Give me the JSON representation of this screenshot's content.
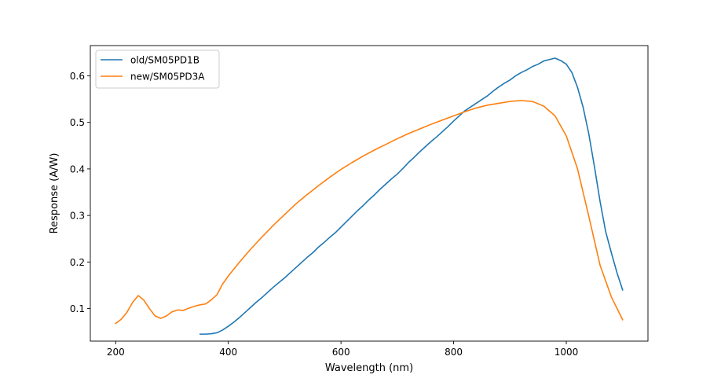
{
  "chart_data": {
    "type": "line",
    "title": "",
    "xlabel": "Wavelength (nm)",
    "ylabel": "Response (A/W)",
    "xlim": [
      155,
      1145
    ],
    "ylim": [
      0.03,
      0.665
    ],
    "xticks": [
      200,
      400,
      600,
      800,
      1000
    ],
    "yticks": [
      0.1,
      0.2,
      0.3,
      0.4,
      0.5,
      0.6
    ],
    "xtick_labels": [
      "200",
      "400",
      "600",
      "800",
      "1000"
    ],
    "ytick_labels": [
      "0.1",
      "0.2",
      "0.3",
      "0.4",
      "0.5",
      "0.6"
    ],
    "grid": false,
    "legend_position": "top-left",
    "series": [
      {
        "name": "old/SM05PD1B",
        "color": "#1f77b4",
        "x": [
          350,
          360,
          370,
          380,
          390,
          400,
          410,
          420,
          430,
          440,
          450,
          460,
          470,
          480,
          490,
          500,
          510,
          520,
          530,
          540,
          550,
          560,
          570,
          580,
          590,
          600,
          610,
          620,
          630,
          640,
          650,
          660,
          670,
          680,
          690,
          700,
          710,
          720,
          730,
          740,
          750,
          760,
          770,
          780,
          790,
          800,
          810,
          820,
          830,
          840,
          850,
          860,
          870,
          880,
          890,
          900,
          910,
          920,
          930,
          940,
          950,
          960,
          970,
          980,
          990,
          1000,
          1010,
          1020,
          1030,
          1040,
          1050,
          1060,
          1070,
          1080,
          1090,
          1100
        ],
        "y": [
          0.045,
          0.045,
          0.046,
          0.048,
          0.054,
          0.062,
          0.071,
          0.081,
          0.092,
          0.103,
          0.114,
          0.124,
          0.135,
          0.146,
          0.156,
          0.166,
          0.177,
          0.188,
          0.199,
          0.21,
          0.22,
          0.232,
          0.242,
          0.253,
          0.263,
          0.275,
          0.287,
          0.299,
          0.311,
          0.322,
          0.334,
          0.345,
          0.357,
          0.368,
          0.379,
          0.389,
          0.401,
          0.414,
          0.425,
          0.437,
          0.448,
          0.459,
          0.469,
          0.48,
          0.491,
          0.503,
          0.514,
          0.525,
          0.533,
          0.541,
          0.549,
          0.557,
          0.567,
          0.576,
          0.584,
          0.591,
          0.6,
          0.607,
          0.613,
          0.62,
          0.625,
          0.632,
          0.635,
          0.638,
          0.633,
          0.625,
          0.607,
          0.575,
          0.532,
          0.475,
          0.405,
          0.33,
          0.265,
          0.22,
          0.177,
          0.14
        ]
      },
      {
        "name": "new/SM05PD3A",
        "color": "#ff7f0e",
        "x": [
          200,
          210,
          220,
          230,
          240,
          250,
          260,
          270,
          280,
          290,
          300,
          310,
          320,
          330,
          340,
          350,
          360,
          370,
          380,
          390,
          400,
          420,
          440,
          460,
          480,
          500,
          520,
          540,
          560,
          580,
          600,
          620,
          640,
          660,
          680,
          700,
          720,
          740,
          760,
          780,
          800,
          820,
          840,
          860,
          880,
          900,
          920,
          940,
          960,
          980,
          1000,
          1020,
          1040,
          1060,
          1080,
          1100
        ],
        "y": [
          0.068,
          0.077,
          0.092,
          0.113,
          0.128,
          0.118,
          0.1,
          0.084,
          0.079,
          0.084,
          0.093,
          0.097,
          0.096,
          0.101,
          0.105,
          0.108,
          0.11,
          0.119,
          0.13,
          0.153,
          0.17,
          0.2,
          0.228,
          0.254,
          0.279,
          0.302,
          0.325,
          0.345,
          0.364,
          0.382,
          0.399,
          0.414,
          0.428,
          0.441,
          0.453,
          0.465,
          0.476,
          0.486,
          0.496,
          0.505,
          0.514,
          0.523,
          0.531,
          0.537,
          0.541,
          0.545,
          0.547,
          0.545,
          0.535,
          0.514,
          0.471,
          0.4,
          0.298,
          0.193,
          0.125,
          0.076
        ]
      }
    ]
  }
}
